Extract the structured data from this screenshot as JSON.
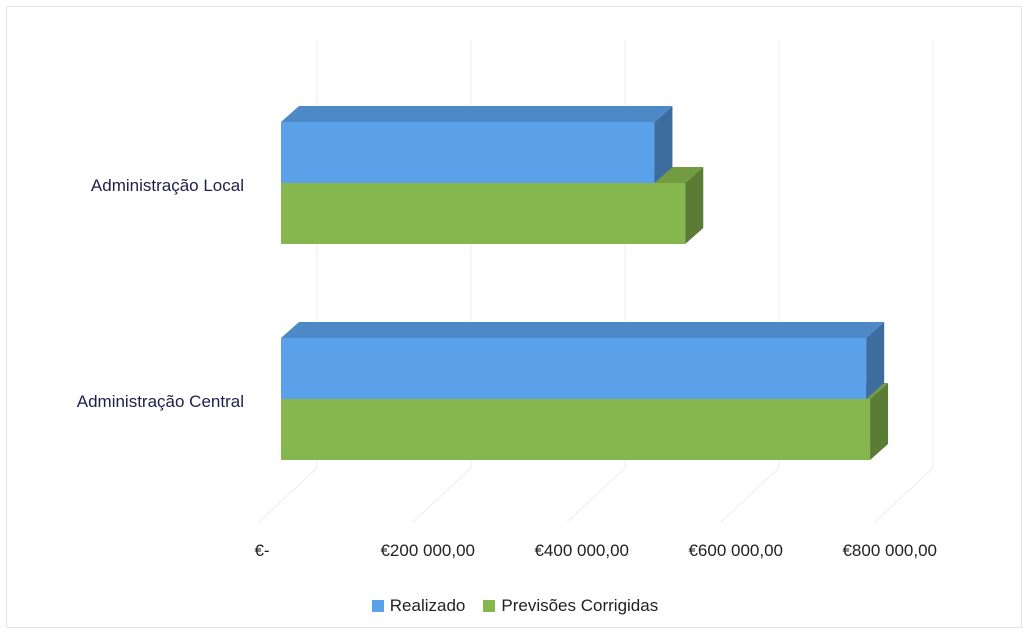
{
  "chart_data": {
    "type": "bar",
    "orientation": "horizontal",
    "style": "3d",
    "categories": [
      "Administração Local",
      "Administração Central"
    ],
    "series": [
      {
        "name": "Realizado",
        "values": [
          485000,
          760000
        ],
        "color": "#5aa1ea"
      },
      {
        "name": "Previsões Corrigidas",
        "values": [
          525000,
          765000
        ],
        "color": "#86b64e"
      }
    ],
    "xlim": [
      0,
      800000
    ],
    "x_ticks": [
      0,
      200000,
      400000,
      600000,
      800000
    ],
    "x_tick_labels": [
      "€-",
      "€200 000,00",
      "€400 000,00",
      "€600 000,00",
      "€800 000,00"
    ],
    "grid": true,
    "legend": "bottom"
  }
}
